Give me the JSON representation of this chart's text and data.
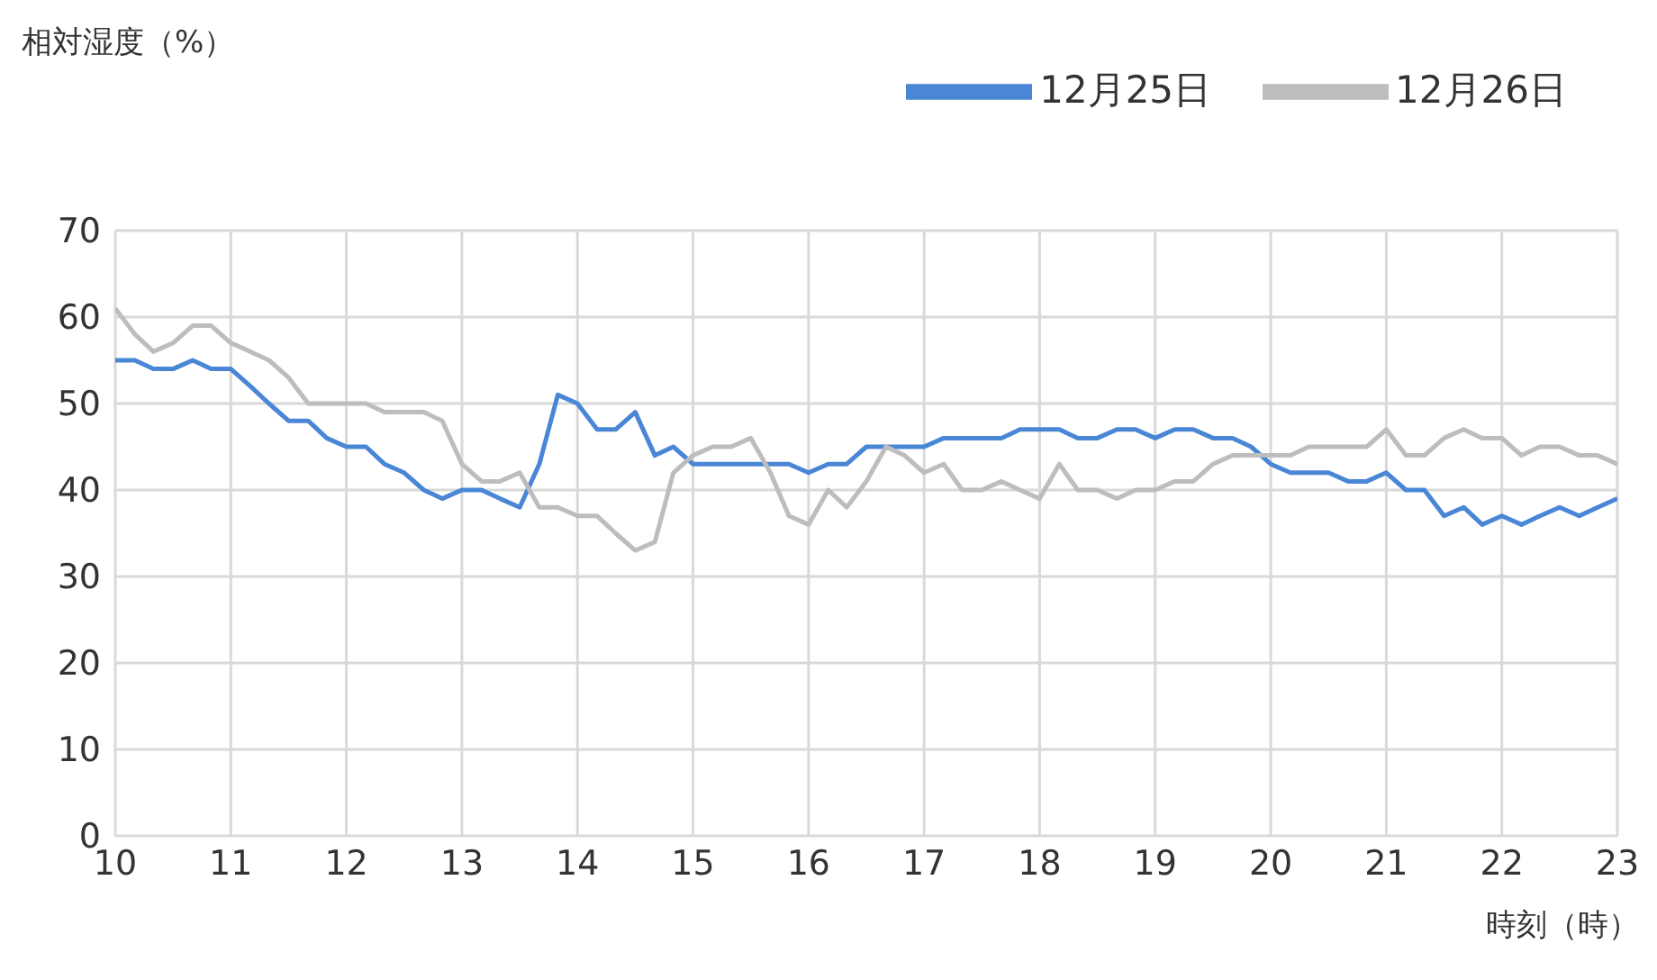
{
  "chart_data": {
    "type": "line",
    "ylabel": "相対湿度（%）",
    "xlabel": "時刻（時）",
    "x": [
      10,
      10.17,
      10.33,
      10.5,
      10.67,
      10.83,
      11,
      11.17,
      11.33,
      11.5,
      11.67,
      11.83,
      12,
      12.17,
      12.33,
      12.5,
      12.67,
      12.83,
      13,
      13.17,
      13.33,
      13.5,
      13.67,
      13.83,
      14,
      14.17,
      14.33,
      14.5,
      14.67,
      14.83,
      15,
      15.17,
      15.33,
      15.5,
      15.67,
      15.83,
      16,
      16.17,
      16.33,
      16.5,
      16.67,
      16.83,
      17,
      17.17,
      17.33,
      17.5,
      17.67,
      17.83,
      18,
      18.17,
      18.33,
      18.5,
      18.67,
      18.83,
      19,
      19.17,
      19.33,
      19.5,
      19.67,
      19.83,
      20,
      20.17,
      20.33,
      20.5,
      20.67,
      20.83,
      21,
      21.17,
      21.33,
      21.5,
      21.67,
      21.83,
      22,
      22.17,
      22.33,
      22.5,
      22.67,
      22.83,
      23
    ],
    "series": [
      {
        "name": "12月25日",
        "color": "#4a86d6",
        "values": [
          55,
          55,
          54,
          54,
          55,
          54,
          54,
          52,
          50,
          48,
          48,
          46,
          45,
          45,
          43,
          42,
          40,
          39,
          40,
          40,
          39,
          38,
          43,
          51,
          50,
          47,
          47,
          49,
          44,
          45,
          43,
          43,
          43,
          43,
          43,
          43,
          42,
          43,
          43,
          45,
          45,
          45,
          45,
          46,
          46,
          46,
          46,
          47,
          47,
          47,
          46,
          46,
          47,
          47,
          46,
          47,
          47,
          46,
          46,
          45,
          43,
          42,
          42,
          42,
          41,
          41,
          42,
          40,
          40,
          37,
          38,
          36,
          37,
          36,
          37,
          38,
          37,
          38,
          39
        ]
      },
      {
        "name": "12月26日",
        "color": "#bdbdbd",
        "values": [
          61,
          58,
          56,
          57,
          59,
          59,
          57,
          56,
          55,
          53,
          50,
          50,
          50,
          50,
          49,
          49,
          49,
          48,
          43,
          41,
          41,
          42,
          38,
          38,
          37,
          37,
          35,
          33,
          34,
          42,
          44,
          45,
          45,
          46,
          42,
          37,
          36,
          40,
          38,
          41,
          45,
          44,
          42,
          43,
          40,
          40,
          41,
          40,
          39,
          43,
          40,
          40,
          39,
          40,
          40,
          41,
          41,
          43,
          44,
          44,
          44,
          44,
          45,
          45,
          45,
          45,
          47,
          44,
          44,
          46,
          47,
          46,
          46,
          44,
          45,
          45,
          44,
          44,
          43
        ]
      }
    ],
    "xlim": [
      10,
      23
    ],
    "xticks": [
      10,
      11,
      12,
      13,
      14,
      15,
      16,
      17,
      18,
      19,
      20,
      21,
      22,
      23
    ],
    "ylim": [
      0,
      70
    ],
    "yticks": [
      0,
      10,
      20,
      30,
      40,
      50,
      60,
      70
    ],
    "grid": true,
    "legend": "top right",
    "marker": "none",
    "line_style": "solid"
  }
}
